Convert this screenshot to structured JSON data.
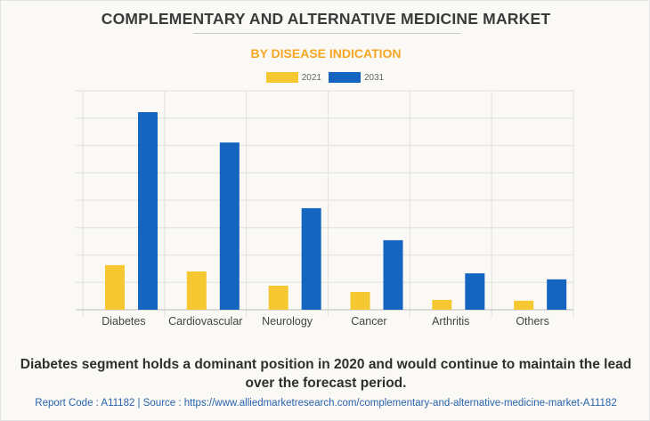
{
  "header": {
    "title": "COMPLEMENTARY AND ALTERNATIVE MEDICINE MARKET",
    "subtitle": "BY DISEASE INDICATION"
  },
  "legend": [
    {
      "label": "2021",
      "color": "#f5c730"
    },
    {
      "label": "2031",
      "color": "#1565c0"
    }
  ],
  "chart_data": {
    "type": "bar",
    "title": "COMPLEMENTARY AND ALTERNATIVE MEDICINE MARKET",
    "subtitle": "BY DISEASE INDICATION",
    "xlabel": "",
    "ylabel": "",
    "y_units_note": "No y-axis tick labels shown; values are relative, in gridline-interval units",
    "ylim": [
      0,
      8
    ],
    "grid": true,
    "legend_position": "top-center",
    "categories": [
      "Diabetes",
      "Cardiovascular",
      "Neurology",
      "Cancer",
      "Arthritis",
      "Others"
    ],
    "series": [
      {
        "name": "2021",
        "color": "#f5c730",
        "values": [
          1.63,
          1.4,
          0.88,
          0.65,
          0.36,
          0.33
        ]
      },
      {
        "name": "2031",
        "color": "#1565c0",
        "values": [
          7.22,
          6.11,
          3.71,
          2.54,
          1.33,
          1.11
        ]
      }
    ]
  },
  "footer": {
    "summary": "Diabetes segment holds a dominant position in 2020 and would continue to maintain the lead over the forecast period.",
    "source": "Report Code : A11182  |  Source : https://www.alliedmarketresearch.com/complementary-and-alternative-medicine-market-A11182"
  }
}
